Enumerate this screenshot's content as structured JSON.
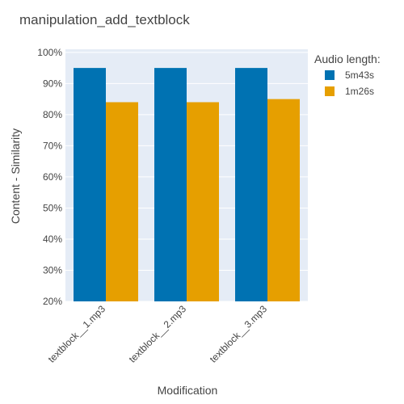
{
  "chart_data": {
    "type": "bar",
    "title": "manipulation_add_textblock",
    "xlabel": "Modification",
    "ylabel": "Content - Similarity",
    "categories": [
      "textblock__1.mp3",
      "textblock__2.mp3",
      "textblock__3.mp3"
    ],
    "series": [
      {
        "name": "5m43s",
        "values": [
          95,
          95,
          95
        ],
        "color": "#0072B2"
      },
      {
        "name": "1m26s",
        "values": [
          84,
          84,
          85
        ],
        "color": "#E69F00"
      }
    ],
    "ylim": [
      20,
      101
    ],
    "yticks": [
      20,
      30,
      40,
      50,
      60,
      70,
      80,
      90,
      100
    ],
    "ytick_labels": [
      "20%",
      "30%",
      "40%",
      "50%",
      "60%",
      "70%",
      "80%",
      "90%",
      "100%"
    ],
    "legend": {
      "title": "Audio length:",
      "placement": "top-right, outside plot"
    },
    "grid": true,
    "plot_background": "#E5ECF6",
    "grid_color": "#ffffff"
  }
}
